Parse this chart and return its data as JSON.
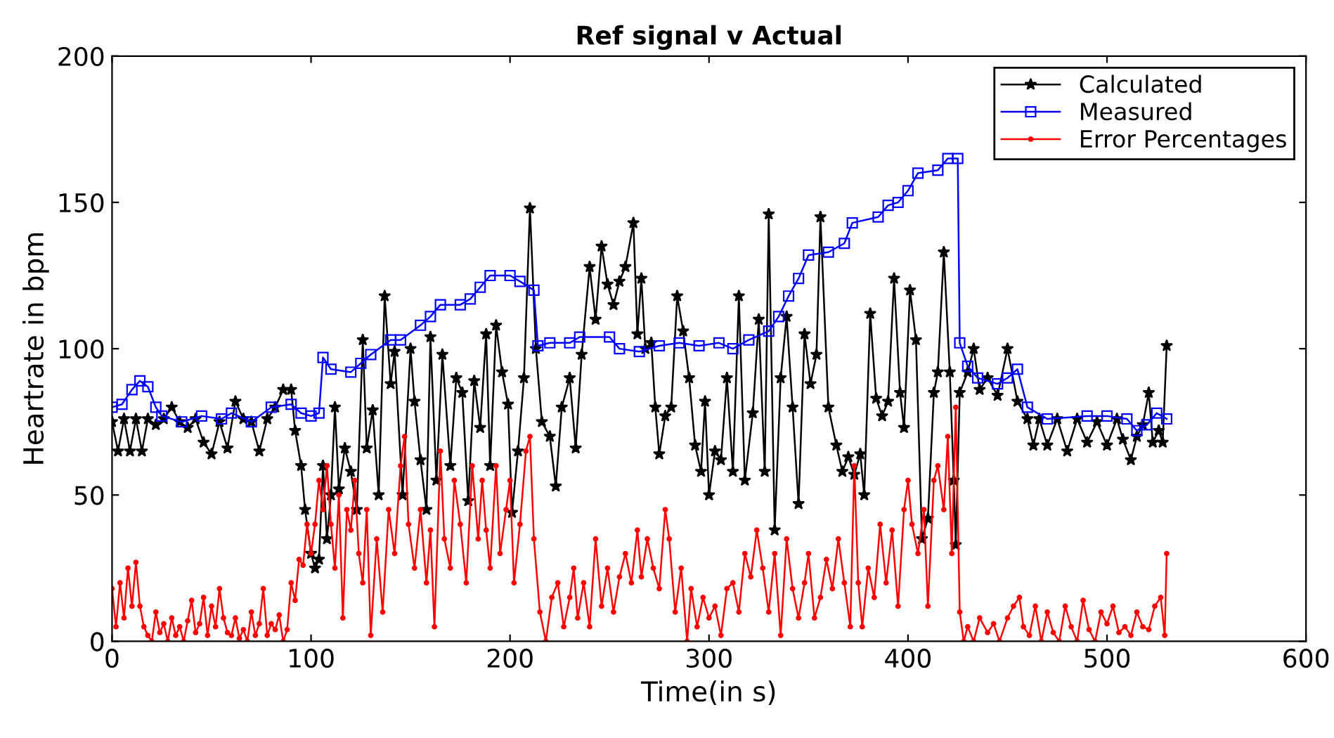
{
  "chart_data": {
    "type": "line",
    "title": "Ref signal v Actual",
    "xlabel": "Time(in s)",
    "ylabel": "Heartrate in bpm",
    "xlim": [
      0,
      600
    ],
    "ylim": [
      0,
      200
    ],
    "xticks": [
      0,
      100,
      200,
      300,
      400,
      500,
      600
    ],
    "yticks": [
      0,
      50,
      100,
      150,
      200
    ],
    "grid": false,
    "legend": "top right",
    "line_style": "solid",
    "series": [
      {
        "name": "Calculated",
        "color": "#000000",
        "marker": "star",
        "x": [
          0,
          3,
          6,
          9,
          12,
          15,
          18,
          22,
          26,
          30,
          34,
          38,
          42,
          46,
          50,
          54,
          58,
          62,
          66,
          70,
          74,
          78,
          82,
          86,
          90,
          92,
          95,
          97,
          100,
          102,
          104,
          106,
          108,
          110,
          112,
          114,
          117,
          120,
          123,
          126,
          128,
          131,
          134,
          137,
          140,
          142,
          146,
          150,
          152,
          155,
          158,
          160,
          163,
          166,
          170,
          173,
          176,
          179,
          182,
          185,
          188,
          190,
          193,
          196,
          199,
          201,
          204,
          207,
          210,
          213,
          216,
          220,
          223,
          226,
          230,
          233,
          236,
          240,
          243,
          246,
          249,
          252,
          255,
          258,
          262,
          264,
          266,
          268,
          271,
          273,
          275,
          278,
          281,
          284,
          287,
          290,
          293,
          296,
          298,
          300,
          303,
          306,
          309,
          312,
          315,
          318,
          322,
          325,
          328,
          330,
          333,
          336,
          339,
          342,
          345,
          348,
          351,
          354,
          356,
          360,
          364,
          367,
          370,
          373,
          376,
          378,
          381,
          384,
          387,
          390,
          393,
          396,
          398,
          401,
          404,
          407,
          410,
          413,
          415,
          418,
          421,
          423,
          424,
          426,
          430,
          433,
          436,
          440,
          445,
          450,
          455,
          460,
          463,
          466,
          470,
          475,
          480,
          485,
          490,
          495,
          500,
          505,
          508,
          512,
          515,
          518,
          521,
          523,
          526,
          528,
          530
        ],
        "values": [
          75,
          65,
          76,
          65,
          76,
          65,
          76,
          74,
          76,
          80,
          75,
          73,
          76,
          68,
          64,
          75,
          66,
          82,
          76,
          75,
          65,
          76,
          80,
          86,
          86,
          72,
          60,
          45,
          30,
          25,
          28,
          60,
          35,
          50,
          80,
          52,
          66,
          58,
          45,
          103,
          66,
          79,
          50,
          118,
          88,
          99,
          50,
          100,
          82,
          62,
          45,
          104,
          55,
          98,
          60,
          90,
          85,
          48,
          89,
          73,
          105,
          60,
          108,
          92,
          81,
          44,
          65,
          90,
          148,
          100,
          75,
          70,
          53,
          80,
          90,
          66,
          98,
          128,
          110,
          135,
          122,
          115,
          123,
          128,
          143,
          105,
          124,
          100,
          102,
          80,
          64,
          77,
          80,
          118,
          106,
          90,
          67,
          58,
          82,
          50,
          65,
          62,
          90,
          58,
          118,
          55,
          78,
          110,
          58,
          146,
          38,
          90,
          111,
          80,
          47,
          105,
          88,
          98,
          145,
          80,
          67,
          58,
          63,
          57,
          64,
          50,
          112,
          83,
          77,
          82,
          124,
          85,
          73,
          120,
          103,
          35,
          42,
          85,
          92,
          133,
          92,
          55,
          33,
          85,
          92,
          100,
          86,
          90,
          84,
          100,
          82,
          76,
          67,
          76,
          67,
          76,
          65,
          76,
          68,
          75,
          67,
          76,
          69,
          62,
          70,
          74,
          85,
          68,
          72,
          68,
          101
        ]
      },
      {
        "name": "Measured",
        "color": "#0000ff",
        "marker": "square",
        "x": [
          0,
          5,
          10,
          14,
          18,
          22,
          25,
          35,
          45,
          55,
          60,
          70,
          80,
          90,
          95,
          100,
          104,
          106,
          110,
          120,
          125,
          130,
          140,
          145,
          155,
          160,
          165,
          175,
          180,
          185,
          190,
          200,
          205,
          212,
          214,
          220,
          230,
          235,
          250,
          255,
          265,
          275,
          285,
          295,
          305,
          312,
          320,
          330,
          335,
          340,
          345,
          350,
          360,
          368,
          372,
          385,
          390,
          395,
          400,
          405,
          415,
          420,
          425,
          426,
          430,
          435,
          445,
          450,
          455,
          460,
          470,
          490,
          500,
          510,
          515,
          520,
          525,
          530
        ],
        "values": [
          80,
          81,
          86,
          89,
          87,
          80,
          77,
          75,
          77,
          76,
          78,
          75,
          80,
          81,
          78,
          77,
          78,
          97,
          93,
          92,
          95,
          98,
          103,
          103,
          108,
          111,
          115,
          115,
          117,
          121,
          125,
          125,
          123,
          120,
          101,
          102,
          102,
          104,
          104,
          100,
          99,
          101,
          102,
          101,
          102,
          100,
          103,
          106,
          111,
          118,
          124,
          132,
          133,
          136,
          143,
          145,
          149,
          150,
          154,
          160,
          161,
          165,
          165,
          102,
          94,
          90,
          88,
          90,
          93,
          80,
          76,
          77,
          77,
          76,
          72,
          74,
          78,
          76
        ]
      },
      {
        "name": "Error Percentages",
        "color": "#ff0000",
        "marker": "circle",
        "x": [
          0,
          2,
          4,
          6,
          8,
          10,
          12,
          14,
          16,
          18,
          20,
          22,
          24,
          26,
          28,
          30,
          32,
          34,
          36,
          38,
          40,
          42,
          44,
          46,
          48,
          50,
          52,
          54,
          56,
          58,
          60,
          62,
          64,
          66,
          68,
          70,
          72,
          74,
          76,
          78,
          80,
          82,
          84,
          86,
          88,
          90,
          92,
          94,
          96,
          98,
          100,
          102,
          104,
          106,
          108,
          110,
          112,
          114,
          116,
          118,
          120,
          122,
          124,
          126,
          128,
          130,
          133,
          136,
          139,
          142,
          145,
          147,
          149,
          152,
          155,
          158,
          160,
          162,
          165,
          167,
          170,
          172,
          175,
          178,
          181,
          184,
          186,
          188,
          190,
          193,
          195,
          198,
          200,
          202,
          205,
          208,
          210,
          212,
          215,
          218,
          221,
          224,
          227,
          230,
          232,
          234,
          237,
          240,
          243,
          246,
          249,
          252,
          255,
          258,
          261,
          264,
          266,
          269,
          272,
          275,
          278,
          280,
          283,
          286,
          289,
          291,
          294,
          297,
          300,
          303,
          306,
          309,
          312,
          315,
          318,
          321,
          324,
          327,
          330,
          333,
          336,
          339,
          342,
          345,
          348,
          350,
          353,
          356,
          359,
          362,
          365,
          368,
          371,
          373,
          375,
          377,
          380,
          383,
          386,
          389,
          392,
          395,
          398,
          400,
          402,
          405,
          408,
          410,
          413,
          415,
          418,
          420,
          422,
          424,
          426,
          428,
          430,
          433,
          436,
          440,
          443,
          446,
          450,
          453,
          456,
          458,
          461,
          464,
          467,
          470,
          473,
          476,
          479,
          482,
          485,
          488,
          491,
          494,
          497,
          500,
          503,
          506,
          509,
          512,
          515,
          518,
          521,
          524,
          527,
          529,
          530
        ],
        "values": [
          18,
          5,
          20,
          8,
          25,
          12,
          27,
          12,
          5,
          2,
          0,
          10,
          3,
          6,
          0,
          8,
          2,
          5,
          0,
          7,
          14,
          3,
          6,
          15,
          2,
          12,
          5,
          18,
          8,
          3,
          2,
          8,
          1,
          4,
          0,
          10,
          2,
          6,
          18,
          2,
          6,
          4,
          9,
          0,
          4,
          20,
          14,
          28,
          26,
          40,
          30,
          40,
          55,
          45,
          60,
          40,
          25,
          50,
          8,
          45,
          38,
          55,
          30,
          20,
          45,
          2,
          35,
          10,
          45,
          30,
          60,
          70,
          40,
          25,
          45,
          20,
          38,
          5,
          65,
          35,
          25,
          55,
          40,
          20,
          60,
          35,
          55,
          38,
          25,
          60,
          30,
          45,
          55,
          20,
          40,
          65,
          70,
          35,
          10,
          0,
          15,
          20,
          5,
          15,
          25,
          8,
          20,
          5,
          35,
          12,
          25,
          10,
          22,
          30,
          20,
          38,
          22,
          35,
          25,
          18,
          45,
          35,
          10,
          25,
          0,
          18,
          5,
          15,
          8,
          12,
          2,
          18,
          20,
          10,
          30,
          22,
          38,
          25,
          10,
          30,
          2,
          35,
          18,
          8,
          20,
          30,
          8,
          15,
          28,
          18,
          35,
          20,
          5,
          60,
          20,
          5,
          25,
          15,
          40,
          20,
          38,
          12,
          45,
          55,
          40,
          30,
          45,
          12,
          55,
          60,
          45,
          70,
          30,
          80,
          10,
          0,
          5,
          0,
          8,
          3,
          6,
          0,
          8,
          12,
          15,
          5,
          2,
          12,
          0,
          10,
          3,
          0,
          12,
          5,
          0,
          14,
          4,
          0,
          10,
          6,
          12,
          3,
          5,
          2,
          10,
          5,
          4,
          12,
          15,
          2,
          30
        ]
      }
    ]
  }
}
